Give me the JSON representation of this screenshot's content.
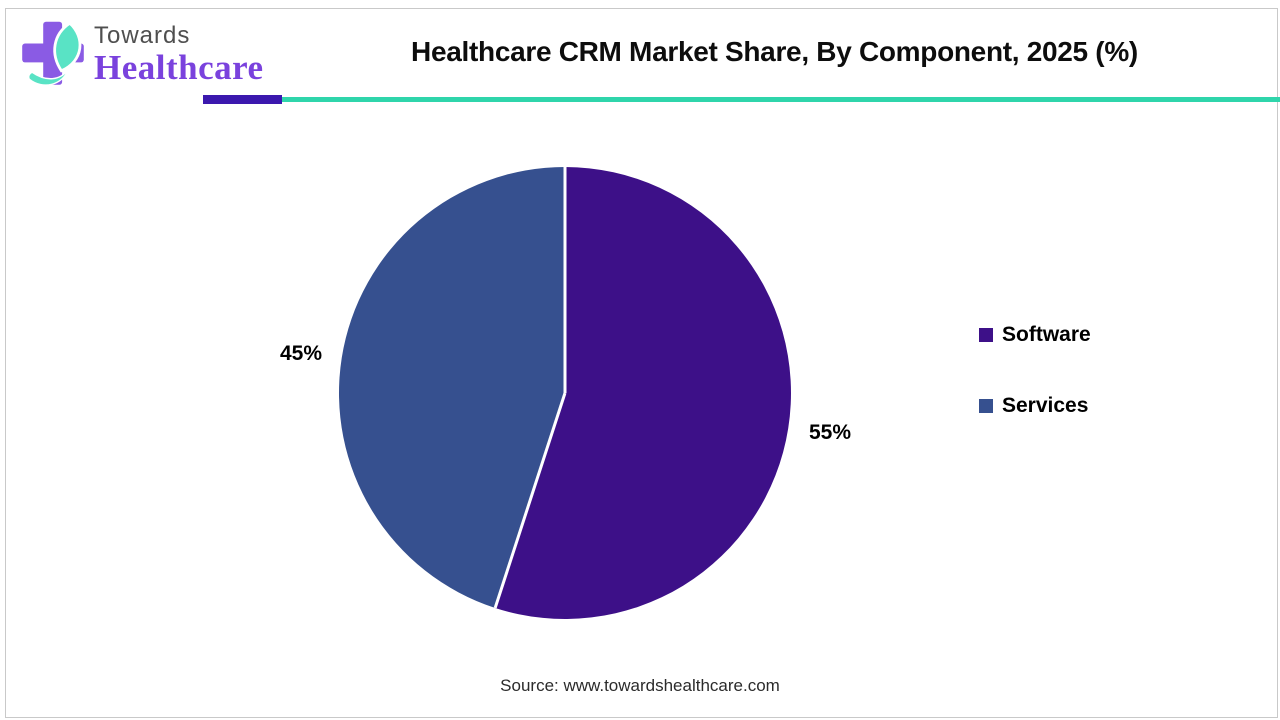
{
  "header": {
    "logo": {
      "line1": "Towards",
      "line2": "Healthcare"
    },
    "title": "Healthcare CRM Market Share, By Component, 2025 (%)"
  },
  "brand": {
    "cross": "#8a5be4",
    "leaf": "#59e3c5",
    "swoosh": "#59e3c5",
    "towards_text": "#4f4f4f",
    "healthcare_text": "#7a42dd"
  },
  "accent": {
    "purple_bar": "#3b18ae",
    "teal_line": "#2fd5ab"
  },
  "chart_data": {
    "type": "pie",
    "title": "Healthcare CRM Market Share, By Component, 2025 (%)",
    "categories": [
      "Software",
      "Services"
    ],
    "values": [
      55,
      45
    ],
    "slice_labels": [
      "55%",
      "45%"
    ],
    "colors": [
      "#3d1088",
      "#36508f"
    ],
    "start_angle_deg": 0,
    "direction": "clockwise",
    "divider_color": "#ffffff",
    "slice_label_color": "#000000",
    "legend_position": "right",
    "grid": false
  },
  "legend": {
    "items": [
      {
        "label": "Software",
        "color": "#3d1088"
      },
      {
        "label": "Services",
        "color": "#36508f"
      }
    ]
  },
  "footer": {
    "source": "Source: www.towardshealthcare.com"
  }
}
